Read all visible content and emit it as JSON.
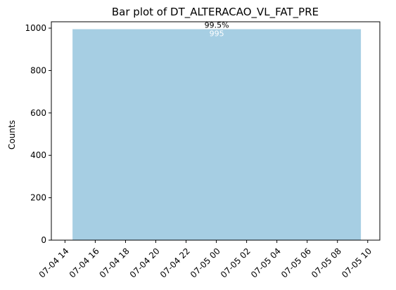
{
  "chart_data": {
    "type": "bar",
    "title": "Bar plot of DT_ALTERACAO_VL_FAT_PRE",
    "xlabel": "",
    "ylabel": "Counts",
    "ylim": [
      0,
      1030
    ],
    "yticks": [
      0,
      200,
      400,
      600,
      800,
      1000
    ],
    "xticks": [
      "07-04 14",
      "07-04 16",
      "07-04 18",
      "07-04 20",
      "07-04 22",
      "07-05 00",
      "07-05 02",
      "07-05 04",
      "07-05 06",
      "07-05 08",
      "07-05 10"
    ],
    "xtick_values": [
      14,
      16,
      18,
      20,
      22,
      24,
      26,
      28,
      30,
      32,
      34
    ],
    "xlim": [
      13.1,
      34.8
    ],
    "bars": [
      {
        "x_start": 14.5,
        "x_end": 33.55,
        "value": 995,
        "value_label": "995",
        "percent_label": "99.5%"
      }
    ],
    "bar_color": "#a6cee3",
    "value_label_color": "#ffffff",
    "percent_label_color": "#000000",
    "grid": false,
    "legend": "none"
  }
}
